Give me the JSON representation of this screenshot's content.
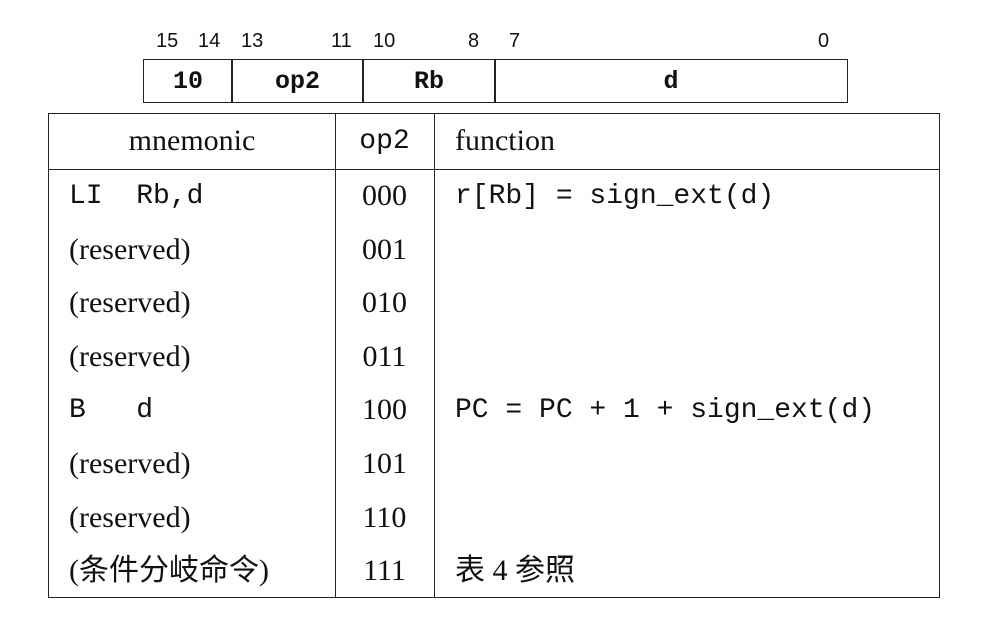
{
  "format": {
    "bit_numbers": [
      "15",
      "14",
      "13",
      "11",
      "10",
      "8",
      "7",
      "0"
    ],
    "fields": [
      "10",
      "op2",
      "Rb",
      "d"
    ]
  },
  "table": {
    "headers": [
      "mnemonic",
      "op2",
      "function"
    ],
    "rows": [
      {
        "mnemonic": "LI  Rb,d",
        "op2": "000",
        "function": "r[Rb] = sign_ext(d)"
      },
      {
        "mnemonic": "(reserved)",
        "op2": "001",
        "function": ""
      },
      {
        "mnemonic": "(reserved)",
        "op2": "010",
        "function": ""
      },
      {
        "mnemonic": "(reserved)",
        "op2": "011",
        "function": ""
      },
      {
        "mnemonic": "B   d",
        "op2": "100",
        "function": "PC = PC + 1 + sign_ext(d)"
      },
      {
        "mnemonic": "(reserved)",
        "op2": "101",
        "function": ""
      },
      {
        "mnemonic": "(reserved)",
        "op2": "110",
        "function": ""
      },
      {
        "mnemonic": "(条件分岐命令)",
        "op2": "111",
        "function": "表 4 参照"
      }
    ]
  }
}
